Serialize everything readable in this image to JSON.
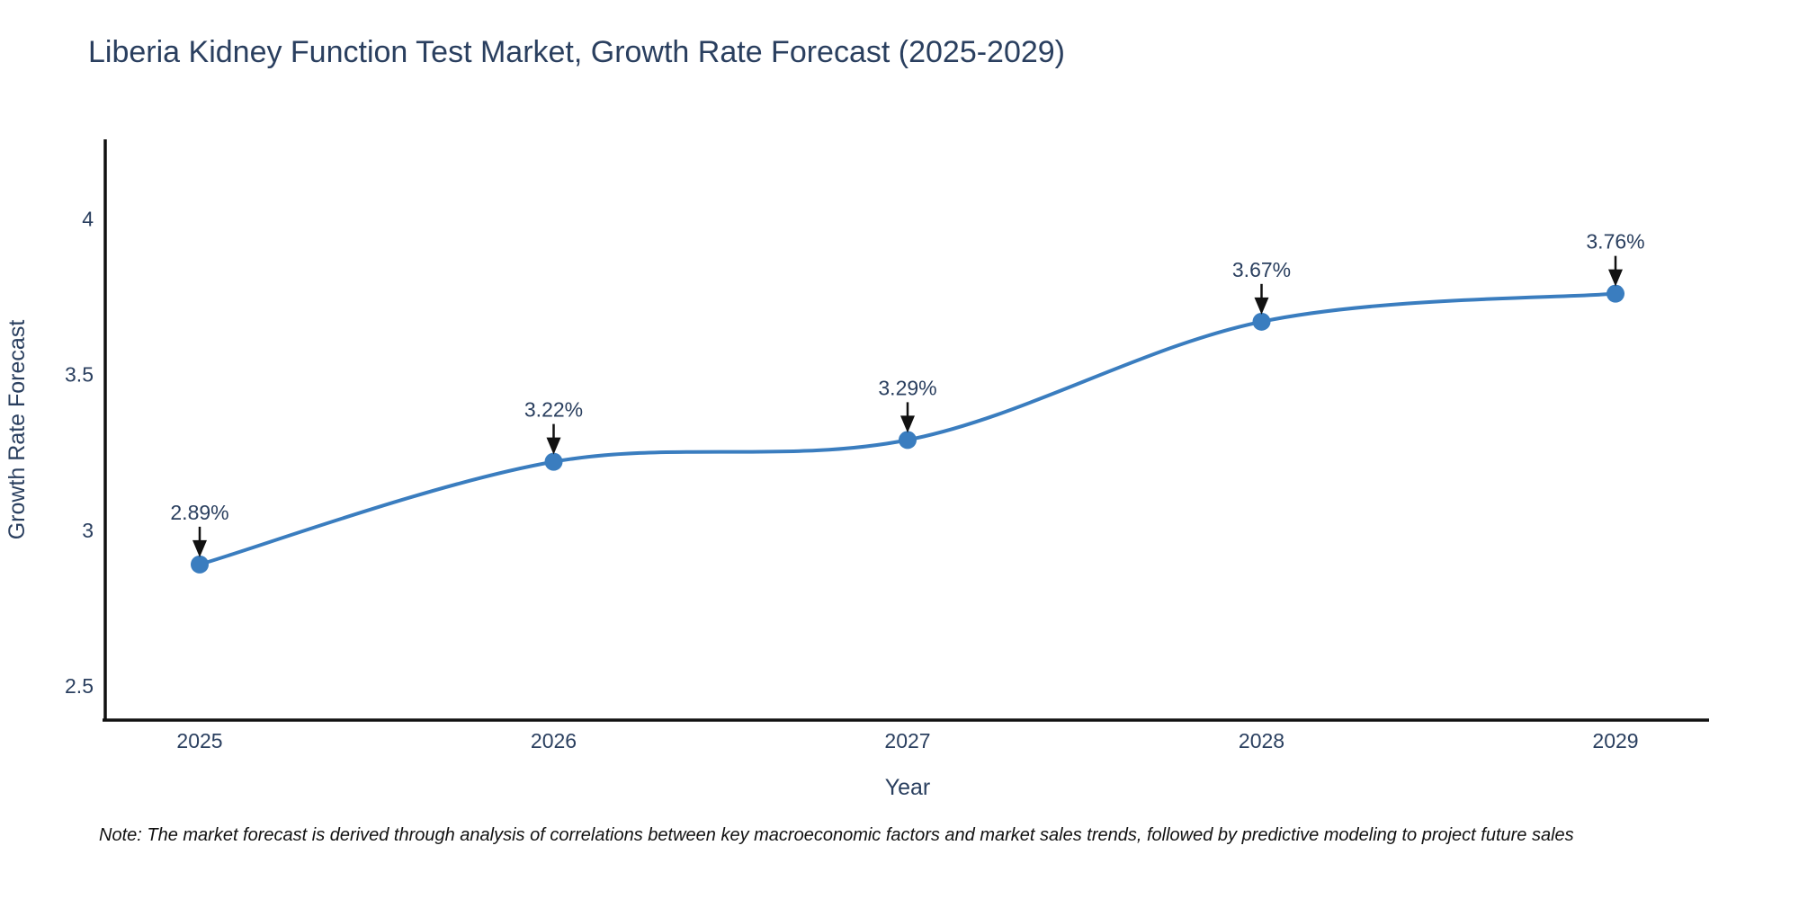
{
  "chart_data": {
    "type": "line",
    "title": "Liberia Kidney Function Test Market, Growth Rate Forecast (2025-2029)",
    "x": [
      2025,
      2026,
      2027,
      2028,
      2029
    ],
    "series": [
      {
        "name": "Growth Rate Forecast",
        "values": [
          2.89,
          3.22,
          3.29,
          3.67,
          3.76
        ]
      }
    ],
    "point_labels": [
      "2.89%",
      "3.22%",
      "3.29%",
      "3.67%",
      "3.76%"
    ],
    "xlabel": "Year",
    "ylabel": "Growth Rate Forecast",
    "yticks": [
      2.5,
      3,
      3.5,
      4
    ],
    "ylim": [
      2.39,
      4.25
    ],
    "grid": false,
    "legend": false,
    "line_shape": "spline",
    "markers": true,
    "annotation_arrows": true,
    "note": "Note: The market forecast is derived through analysis of correlations between key macroeconomic factors and market sales trends, followed by predictive modeling to project future sales",
    "colors": {
      "line": "#3a7dbf",
      "marker": "#3a7dbf",
      "text": "#2a3f5f",
      "axis": "#111111",
      "arrow": "#111111",
      "background": "#ffffff"
    }
  }
}
